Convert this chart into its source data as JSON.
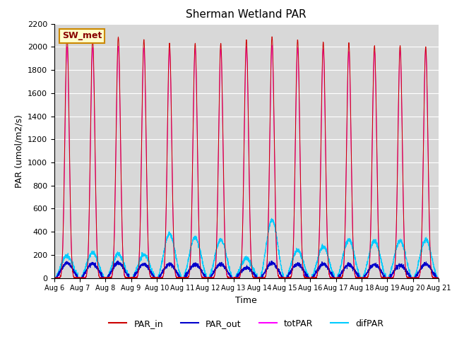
{
  "title": "Sherman Wetland PAR",
  "ylabel": "PAR (umol/m2/s)",
  "xlabel": "Time",
  "site_label": "SW_met",
  "ylim": [
    0,
    2200
  ],
  "n_days": 15,
  "colors": {
    "PAR_in": "#cc0000",
    "PAR_out": "#0000cc",
    "totPAR": "#ff00ff",
    "difPAR": "#00ccff"
  },
  "background_color": "#d8d8d8",
  "par_in_peaks": [
    2100,
    2080,
    2085,
    2060,
    2030,
    2030,
    2030,
    2060,
    2090,
    2060,
    2040,
    2030,
    2010,
    2010,
    2000
  ],
  "par_out_peaks": [
    130,
    125,
    130,
    120,
    120,
    120,
    120,
    90,
    130,
    120,
    120,
    115,
    115,
    110,
    120
  ],
  "totpar_peaks": [
    2000,
    1990,
    2000,
    1990,
    1980,
    1980,
    1980,
    2000,
    2010,
    1990,
    1980,
    1960,
    1960,
    1970,
    1980
  ],
  "difpar_peaks": [
    190,
    220,
    205,
    200,
    380,
    350,
    330,
    170,
    500,
    240,
    270,
    330,
    320,
    320,
    330
  ],
  "day_start": 6,
  "month": "Aug"
}
